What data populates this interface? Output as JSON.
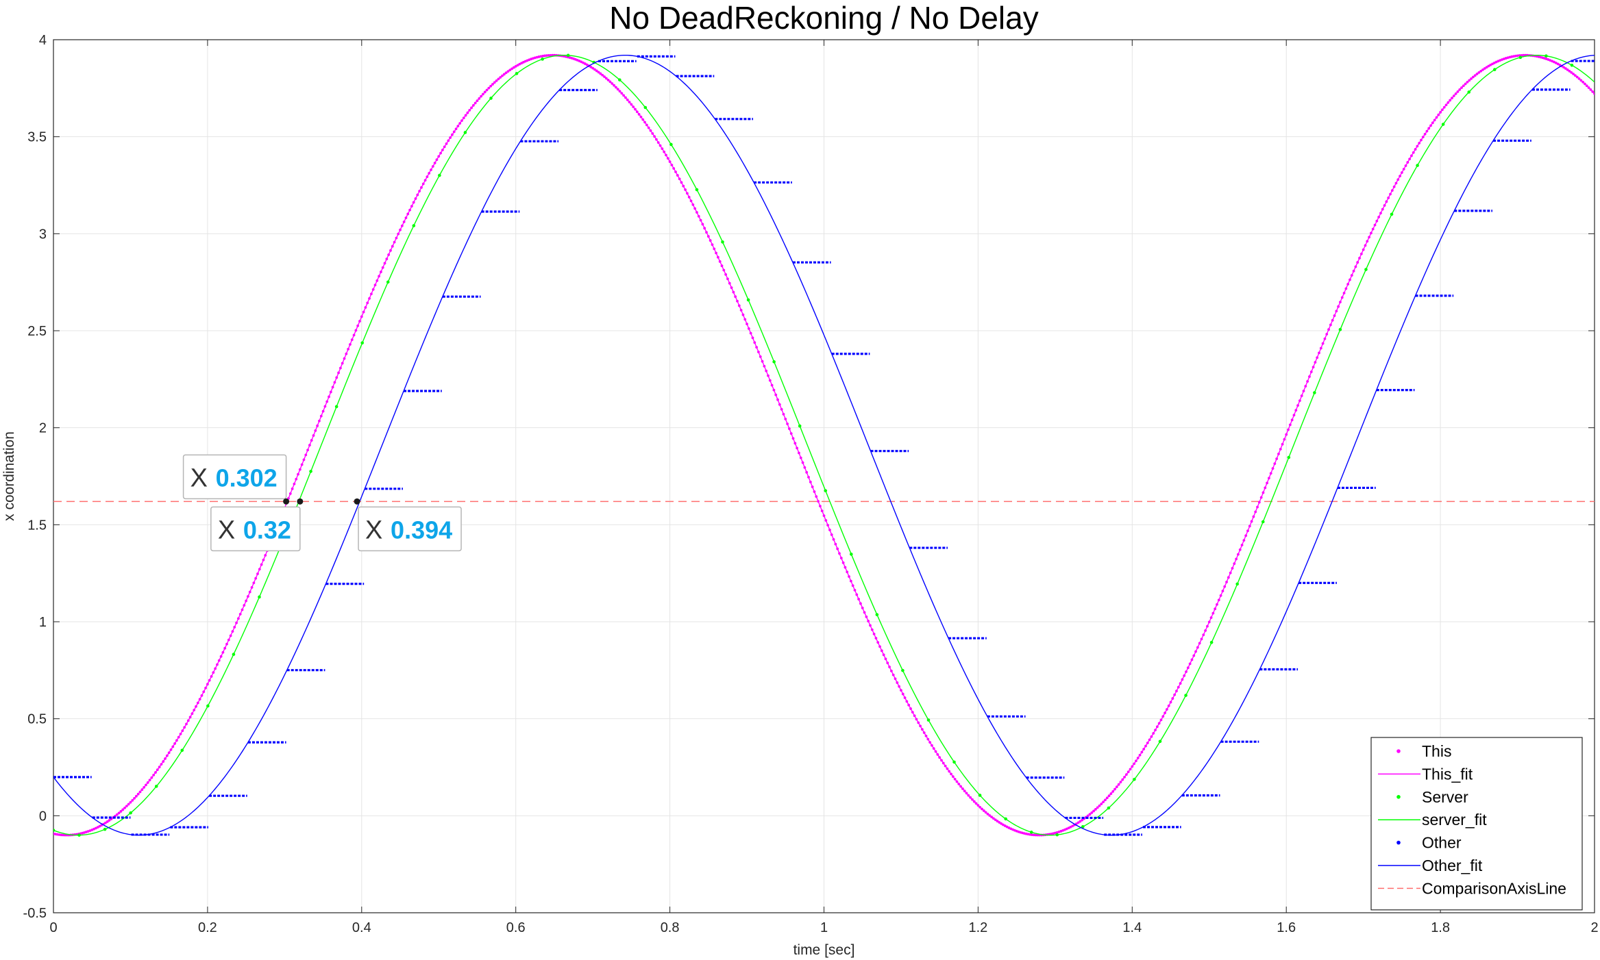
{
  "chart_data": {
    "type": "scatter",
    "title": "No DeadReckoning / No Delay",
    "xlabel": "time [sec]",
    "ylabel": "x coordination",
    "xlim": [
      0,
      2
    ],
    "ylim": [
      -0.5,
      4
    ],
    "grid": true,
    "legend_position": "bottom-right",
    "x_ticks": [
      "0",
      "0.2",
      "0.4",
      "0.6",
      "0.8",
      "1",
      "1.2",
      "1.4",
      "1.6",
      "1.8",
      "2"
    ],
    "y_ticks": [
      "-0.5",
      "0",
      "0.5",
      "1",
      "1.5",
      "2",
      "2.5",
      "3",
      "3.5",
      "4"
    ],
    "sine_model": {
      "offset": 1.91,
      "amplitude": 2.01,
      "period_sec": 1.262,
      "this_peak_sec": 0.648,
      "server_peak_sec": 0.663,
      "other_peak_sec": 0.742
    },
    "series": [
      {
        "name": "This",
        "kind": "markers",
        "color": "#ff00ff",
        "sample_interval_sec": 0.0025,
        "peak_sec": 0.648
      },
      {
        "name": "This_fit",
        "kind": "line",
        "color": "#ff00ff",
        "peak_sec": 0.648
      },
      {
        "name": "Server",
        "kind": "markers",
        "color": "#00ff00",
        "sample_interval_sec": 0.0334,
        "peak_sec": 0.663
      },
      {
        "name": "server_fit",
        "kind": "line",
        "color": "#00ff00",
        "peak_sec": 0.663
      },
      {
        "name": "Other",
        "kind": "steps",
        "color": "#0000ff",
        "step_interval_sec": 0.0505,
        "step_offset_sec": 0.0,
        "peak_sec": 0.742
      },
      {
        "name": "Other_fit",
        "kind": "line",
        "color": "#0000ff",
        "peak_sec": 0.742
      },
      {
        "name": "ComparisonAxisLine",
        "kind": "dashed-hline",
        "color": "#ff6f6f",
        "y": 1.62
      }
    ],
    "datatips": [
      {
        "prefix": "X",
        "value": "0.302",
        "x": 0.302,
        "y": 1.62
      },
      {
        "prefix": "X",
        "value": "0.32",
        "x": 0.32,
        "y": 1.62
      },
      {
        "prefix": "X",
        "value": "0.394",
        "x": 0.394,
        "y": 1.62
      }
    ]
  }
}
